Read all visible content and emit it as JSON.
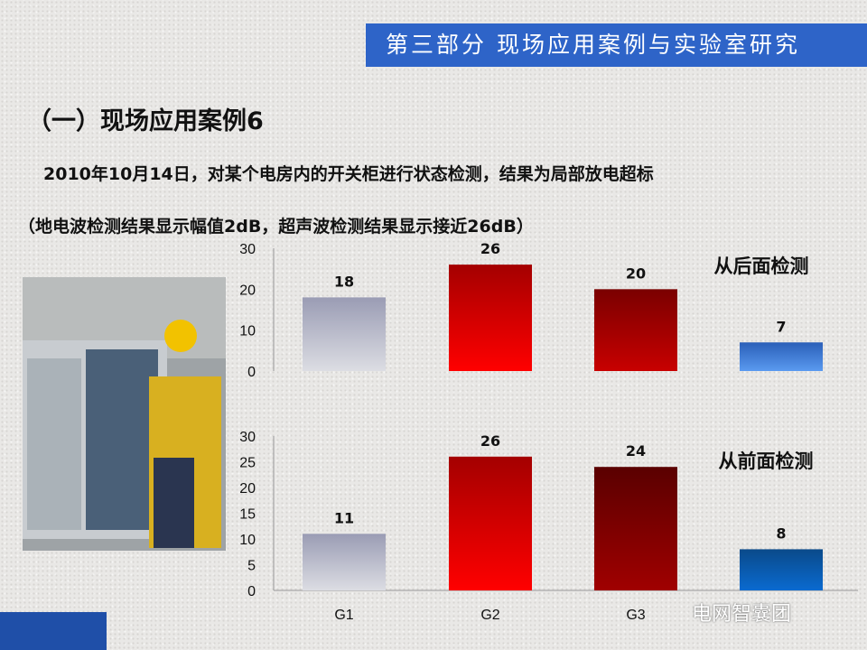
{
  "header": {
    "banner": "第三部分 现场应用案例与实验室研究"
  },
  "title": "（一）现场应用案例6",
  "description": {
    "line1": "2010年10月14日，对某个电房内的开关柜进行状态检测，结果为局部放电超标",
    "line2": "（地电波检测结果显示幅值2dB，超声波检测结果显示接近26dB）"
  },
  "watermark": "电网智囊团",
  "chart_data": [
    {
      "type": "bar",
      "title": "从后面检测",
      "categories": [
        "G1",
        "G2",
        "G3",
        ""
      ],
      "values": [
        18,
        26,
        20,
        7
      ],
      "ylim": [
        0,
        30
      ],
      "yticks": [
        0,
        10,
        20,
        30
      ],
      "colors": [
        [
          "#9a9cb4",
          "#dcdde3"
        ],
        [
          "#a40000",
          "#ff0000"
        ],
        [
          "#7a0000",
          "#c80000"
        ],
        [
          "#2a5fb8",
          "#5a9af0"
        ]
      ],
      "grid": false
    },
    {
      "type": "bar",
      "title": "从前面检测",
      "categories": [
        "G1",
        "G2",
        "G3",
        ""
      ],
      "values": [
        11,
        26,
        24,
        8
      ],
      "ylim": [
        0,
        30
      ],
      "yticks": [
        0,
        5,
        10,
        15,
        20,
        25,
        30
      ],
      "colors": [
        [
          "#9a9cb4",
          "#dcdde3"
        ],
        [
          "#a40000",
          "#ff0000"
        ],
        [
          "#5a0000",
          "#a00000"
        ],
        [
          "#0a4a8a",
          "#0a6ad0"
        ]
      ],
      "grid": false
    }
  ]
}
